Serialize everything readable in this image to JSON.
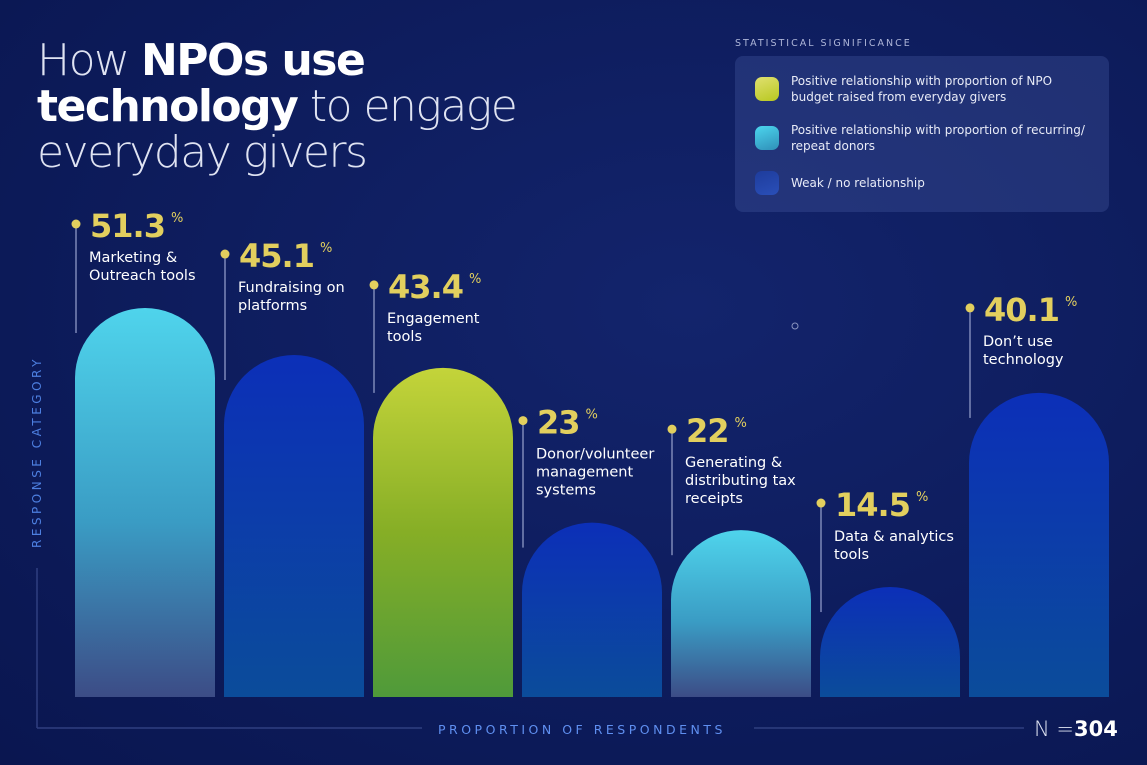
{
  "title": {
    "part1": "How ",
    "part2": "NPOs use",
    "part3": "technology",
    "part4": " to engage",
    "part5": "everyday givers"
  },
  "legend": {
    "heading": "STATISTICAL SIGNIFICANCE",
    "items": [
      {
        "label": "Positive relationship with proportion of NPO budget raised from everyday givers",
        "color": "#c8d43a"
      },
      {
        "label": "Positive relationship with proportion of recurring/ repeat donors",
        "color": "#45c8e4"
      },
      {
        "label": "Weak / no relationship",
        "color": "#1d3fa8"
      }
    ]
  },
  "chart_data": {
    "type": "bar",
    "title": "How NPOs use technology to engage everyday givers",
    "xlabel": "PROPORTION OF RESPONDENTS",
    "ylabel": "RESPONSE CATEGORY",
    "unit": "%",
    "ylim": [
      0,
      51.3
    ],
    "grid": false,
    "legend_placement": "top-right",
    "categories": [
      "Marketing & Outreach tools",
      "Fundraising on platforms",
      "Engagement tools",
      "Donor/volunteer management systems",
      "Generating & distributing tax receipts",
      "Data & analytics tools",
      "Don’t use technology"
    ],
    "label_lines": [
      [
        "Marketing &",
        "Outreach tools"
      ],
      [
        "Fundraising on",
        "platforms"
      ],
      [
        "Engagement",
        "tools"
      ],
      [
        "Donor/volunteer",
        "management",
        "systems"
      ],
      [
        "Generating &",
        "distributing tax",
        "receipts"
      ],
      [
        "Data & analytics",
        "tools"
      ],
      [
        "Don’t use",
        "technology"
      ]
    ],
    "values": [
      51.3,
      45.1,
      43.4,
      23,
      22,
      14.5,
      40.1
    ],
    "value_labels": [
      "51.3",
      "45.1",
      "43.4",
      "23",
      "22",
      "14.5",
      "40.1"
    ],
    "significance": [
      "recurring",
      "weak",
      "budget",
      "weak",
      "recurring",
      "weak",
      "weak"
    ]
  },
  "sample": {
    "label": "N =",
    "value": "304"
  }
}
